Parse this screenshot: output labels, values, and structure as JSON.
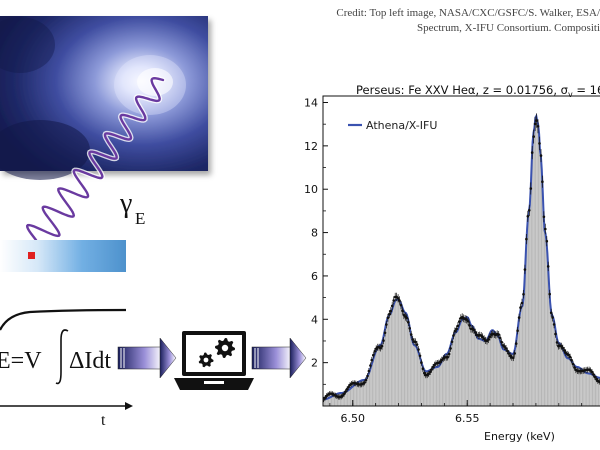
{
  "credit": {
    "line1": "Credit: Top left image, NASA/CXC/GSFC/S. Walker, ESA/",
    "line2": "Spectrum, X-IFU Consortium. Compositi"
  },
  "photon_label": "γ",
  "photon_subscript": "E",
  "equation": {
    "lhs": "E=V",
    "rhs": "ΔIdt"
  },
  "time_axis_label": "t",
  "icons": {
    "computer": "laptop-gears-icon",
    "arrows": "arrow-right-icon"
  },
  "colors": {
    "data_line": "#3a52b0",
    "wave": "#6a3aa0",
    "detector": "#2f7fc4",
    "pixel": "#e02020"
  },
  "chart_data": {
    "type": "bar",
    "title_main": "Perseus: Fe XXV Heα, z = 0.01756, σ",
    "title_sub": "v",
    "title_tail": " = 16",
    "xlabel": "Energy (keV)",
    "ylabel": "",
    "xlim": [
      6.487,
      6.608
    ],
    "ylim": [
      0,
      14.3
    ],
    "x_ticks": [
      6.5,
      6.55
    ],
    "x_tick_labels": [
      "6.50",
      "6.55"
    ],
    "y_ticks": [
      2,
      4,
      6,
      8,
      10,
      12,
      14
    ],
    "y_tick_labels": [
      "2",
      "4",
      "6",
      "8",
      "10",
      "12",
      "14"
    ],
    "legend": "Athena/X-IFU",
    "legend_position": "top-left",
    "series": [
      {
        "name": "Athena/X-IFU",
        "x": [
          6.487,
          6.495,
          6.505,
          6.512,
          6.516,
          6.519,
          6.52,
          6.523,
          6.527,
          6.532,
          6.537,
          6.541,
          6.545,
          6.548,
          6.55,
          6.552,
          6.555,
          6.558,
          6.561,
          6.563,
          6.566,
          6.57,
          6.574,
          6.577,
          6.579,
          6.58,
          6.581,
          6.582,
          6.584,
          6.587,
          6.59,
          6.594,
          6.598,
          6.603,
          6.608
        ],
        "values": [
          0.3,
          0.6,
          1.2,
          2.8,
          4.2,
          4.9,
          4.9,
          4.3,
          2.8,
          1.6,
          1.8,
          2.4,
          3.4,
          4.0,
          4.1,
          3.7,
          3.1,
          3.0,
          3.5,
          3.3,
          2.6,
          2.4,
          4.6,
          9.0,
          12.6,
          13.4,
          13.0,
          11.6,
          8.0,
          4.2,
          2.9,
          2.2,
          1.8,
          1.5,
          1.3
        ]
      }
    ]
  }
}
